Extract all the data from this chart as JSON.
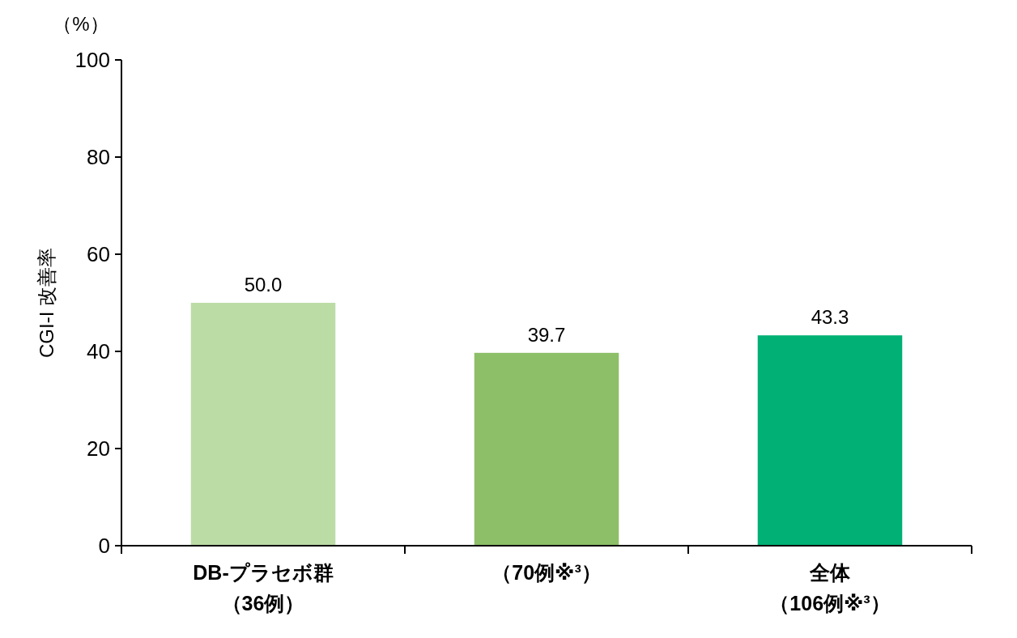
{
  "chart_data": {
    "type": "bar",
    "ylabel": "CGI-I 改善率",
    "annotations": [
      "（%）"
    ],
    "categories": [
      "DB-プラセボ群（36例）",
      "（70例※³）",
      "全体（106例※³）"
    ],
    "values": [
      50.0,
      39.7,
      43.3
    ],
    "value_labels": [
      "50.0",
      "39.7",
      "43.3"
    ],
    "colors": [
      "#bcdca6",
      "#8cbf68",
      "#00b074"
    ],
    "ylim": [
      0,
      100
    ],
    "yticks": [
      0,
      20,
      40,
      60,
      80,
      100
    ],
    "grid": false
  }
}
